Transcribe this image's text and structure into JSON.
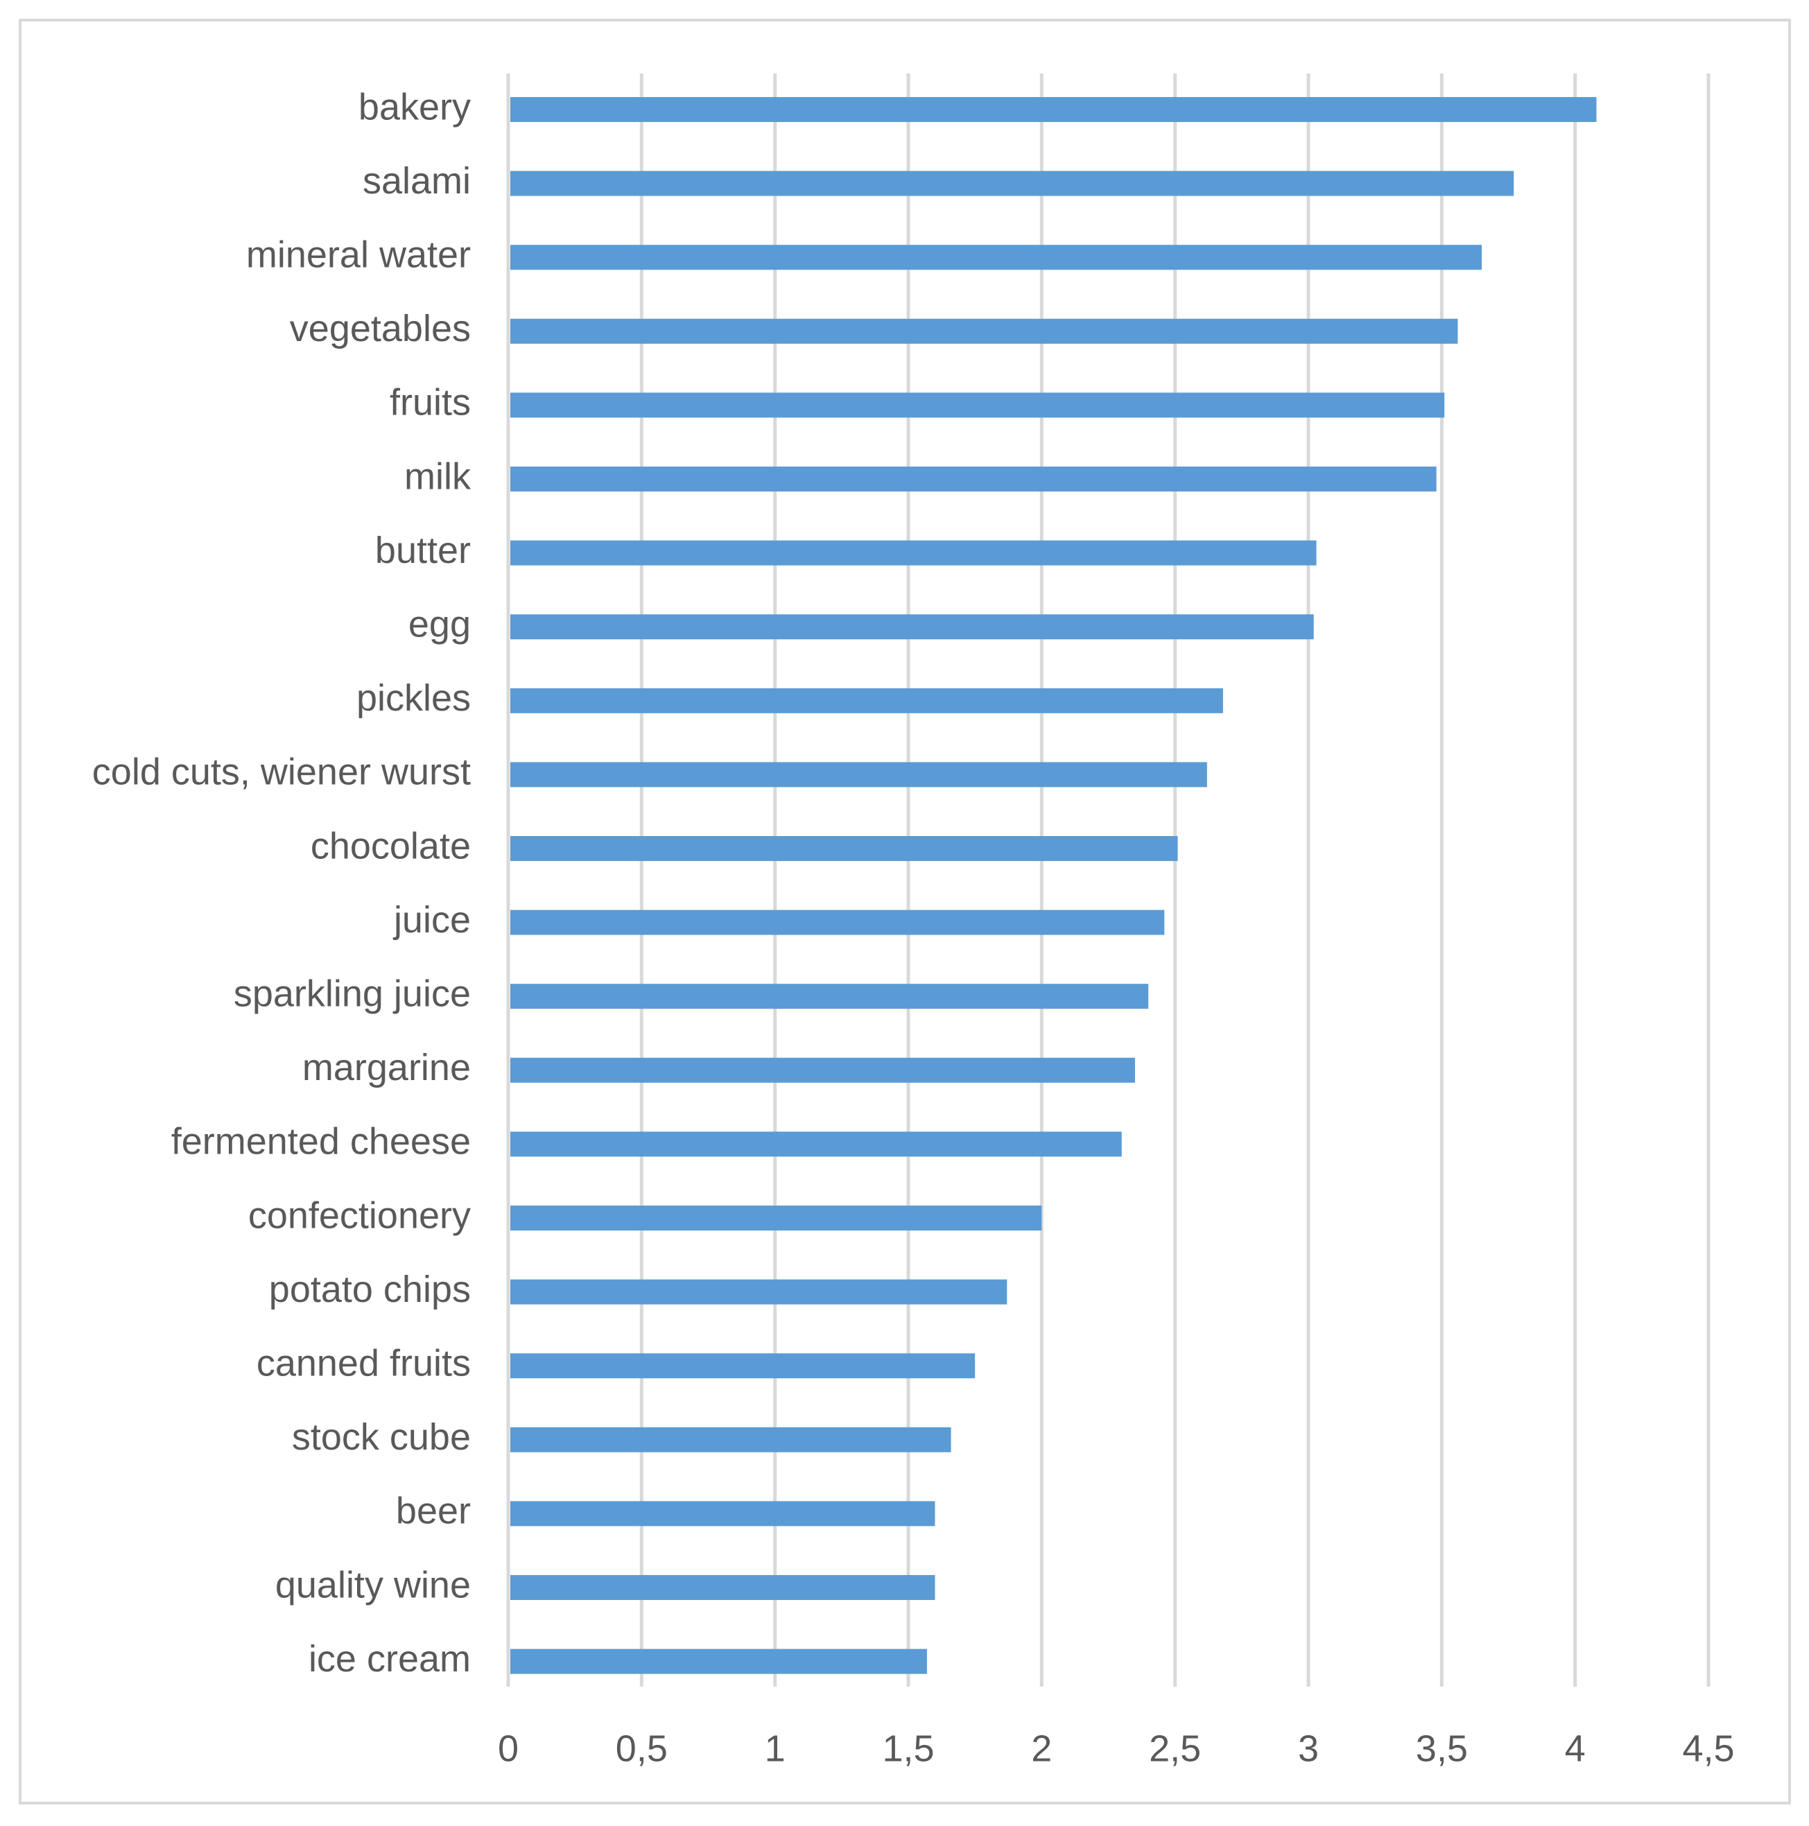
{
  "chart_data": {
    "type": "bar",
    "orientation": "horizontal",
    "title": "",
    "xlabel": "",
    "ylabel": "",
    "xlim": [
      0,
      4.5
    ],
    "x_ticks": [
      0,
      0.5,
      1,
      1.5,
      2,
      2.5,
      3,
      3.5,
      4,
      4.5
    ],
    "x_tick_labels": [
      "0",
      "0,5",
      "1",
      "1,5",
      "2",
      "2,5",
      "3",
      "3,5",
      "4",
      "4,5"
    ],
    "grid": "vertical",
    "legend": "none",
    "bar_color": "#5b9bd5",
    "categories": [
      "bakery",
      "salami",
      "mineral water",
      "vegetables",
      "fruits",
      "milk",
      "butter",
      "egg",
      "pickles",
      "cold cuts, wiener wurst",
      "chocolate",
      "juice",
      "sparkling juice",
      "margarine",
      "fermented cheese",
      "confectionery",
      "potato chips",
      "canned fruits",
      "stock cube",
      "beer",
      "quality wine",
      "ice cream"
    ],
    "values": [
      4.08,
      3.77,
      3.65,
      3.56,
      3.51,
      3.48,
      3.03,
      3.02,
      2.68,
      2.62,
      2.51,
      2.46,
      2.4,
      2.35,
      2.3,
      2.0,
      1.87,
      1.75,
      1.66,
      1.6,
      1.6,
      1.57
    ]
  }
}
